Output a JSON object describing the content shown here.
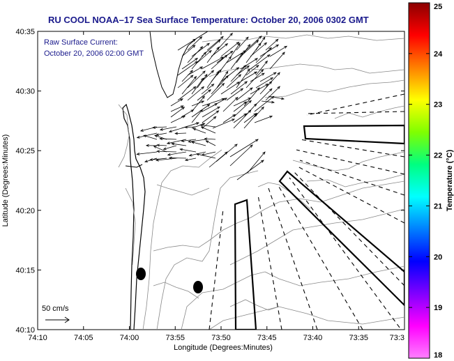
{
  "chart_data": {
    "type": "vector-field-map",
    "title": "RU COOL  NOAA–17  Sea Surface Temperature:  October 20, 2006 0302 GMT",
    "xlabel": "Longitude (Degrees:Minutes)",
    "ylabel": "Latitude (Degrees:Minutes)",
    "x_ticks": [
      "74:10",
      "74:05",
      "74:00",
      "73:55",
      "73:50",
      "73:45",
      "73:40",
      "73:35",
      "73:3"
    ],
    "y_ticks": [
      "40:10",
      "40:15",
      "40:20",
      "40:25",
      "40:30",
      "40:35"
    ],
    "x_range_minutes_west": [
      -10,
      27
    ],
    "y_range_minutes_north": [
      10,
      35
    ],
    "annotations": [
      "Raw Surface Current:",
      "October 20, 2006 02:00 GMT"
    ],
    "scale_label": "50 cm/s",
    "colorbar": {
      "label": "Temperature (°C)",
      "ticks": [
        "25",
        "24",
        "23",
        "22",
        "21",
        "20",
        "19",
        "18"
      ],
      "range": [
        18,
        25
      ],
      "colors": [
        "#8b0000",
        "#ff0000",
        "#ff8000",
        "#ffff00",
        "#80ff00",
        "#00ff80",
        "#00ffff",
        "#0080ff",
        "#0000ff",
        "#8000ff",
        "#ff00ff",
        "#ff80ff"
      ]
    },
    "station_markers": [
      {
        "lon": -73.9833,
        "lat": 40.2467
      },
      {
        "lon": -73.8833,
        "lat": 40.2267
      }
    ]
  }
}
